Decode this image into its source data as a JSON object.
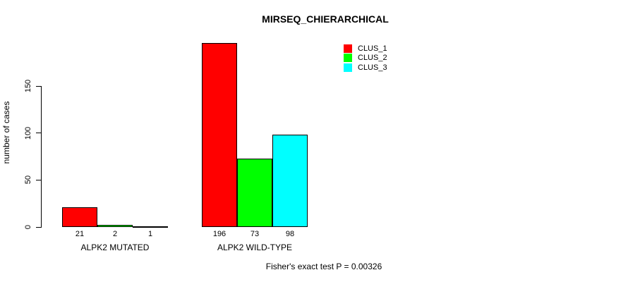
{
  "chart_data": {
    "type": "bar",
    "title": "MIRSEQ_CHIERARCHICAL",
    "ylabel": "number of cases",
    "xlabel": "",
    "categories": [
      "ALPK2 MUTATED",
      "ALPK2 WILD-TYPE"
    ],
    "series": [
      {
        "name": "CLUS_1",
        "color": "#FF0000",
        "values": [
          21,
          196
        ]
      },
      {
        "name": "CLUS_2",
        "color": "#00FF00",
        "values": [
          2,
          73
        ]
      },
      {
        "name": "CLUS_3",
        "color": "#00FFFF",
        "values": [
          1,
          98
        ]
      }
    ],
    "bar_value_labels": [
      [
        "21",
        "2",
        "1"
      ],
      [
        "196",
        "73",
        "98"
      ]
    ],
    "yticks": [
      0,
      50,
      100,
      150
    ],
    "ylim": [
      0,
      150
    ],
    "grid": false,
    "legend_position": "top-right",
    "legend_entries": [
      "CLUS_1",
      "CLUS_2",
      "CLUS_3"
    ],
    "caption": "Fisher's exact test P = 0.00326"
  },
  "colors": {
    "background": "#FFFFFF",
    "axis": "#000000",
    "text": "#000000",
    "bar_border": "#000000"
  }
}
